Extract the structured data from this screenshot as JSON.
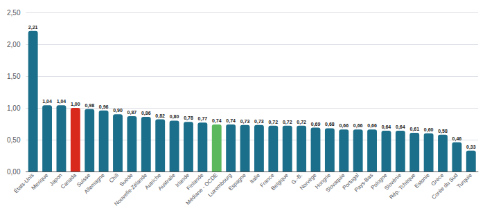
{
  "chart_data": {
    "type": "bar",
    "categories": [
      "États-Unis",
      "Mexique",
      "Japon",
      "Canada",
      "Suisse",
      "Allemagne",
      "Chili",
      "Suède",
      "Nouvelle-Zélande",
      "Autriche",
      "Australie",
      "Irlande",
      "Finlande",
      "Médiane - OCDE",
      "Luxembourg",
      "Espagne",
      "Italie",
      "France",
      "Belgique",
      "G.-B.",
      "Norvège",
      "Hongrie",
      "Slovaquie",
      "Portugal",
      "Pays-Bas",
      "Pologne",
      "Slovénie",
      "Rép. Tchèque",
      "Estonie",
      "Grèce",
      "Corée du Sud",
      "Turquie"
    ],
    "values": [
      2.21,
      1.04,
      1.04,
      1.0,
      0.98,
      0.96,
      0.9,
      0.87,
      0.86,
      0.82,
      0.8,
      0.78,
      0.77,
      0.74,
      0.74,
      0.73,
      0.73,
      0.72,
      0.72,
      0.72,
      0.69,
      0.68,
      0.66,
      0.66,
      0.66,
      0.64,
      0.64,
      0.61,
      0.6,
      0.58,
      0.46,
      0.33
    ],
    "value_labels": [
      "2,21",
      "1,04",
      "1,04",
      "1,00",
      "0,98",
      "0,96",
      "0,90",
      "0,87",
      "0,86",
      "0,82",
      "0,80",
      "0,78",
      "0,77",
      "0,74",
      "0,74",
      "0,73",
      "0,73",
      "0,72",
      "0,72",
      "0,72",
      "0,69",
      "0,68",
      "0,66",
      "0,66",
      "0,66",
      "0,64",
      "0,64",
      "0,61",
      "0,60",
      "0,58",
      "0,46",
      "0,33"
    ],
    "colors": [
      "#1b6f8a",
      "#1b6f8a",
      "#1b6f8a",
      "#d9291c",
      "#1b6f8a",
      "#1b6f8a",
      "#1b6f8a",
      "#1b6f8a",
      "#1b6f8a",
      "#1b6f8a",
      "#1b6f8a",
      "#1b6f8a",
      "#1b6f8a",
      "#5cb85c",
      "#1b6f8a",
      "#1b6f8a",
      "#1b6f8a",
      "#1b6f8a",
      "#1b6f8a",
      "#1b6f8a",
      "#1b6f8a",
      "#1b6f8a",
      "#1b6f8a",
      "#1b6f8a",
      "#1b6f8a",
      "#1b6f8a",
      "#1b6f8a",
      "#1b6f8a",
      "#1b6f8a",
      "#1b6f8a",
      "#1b6f8a",
      "#1b6f8a"
    ],
    "ylim": [
      0,
      2.5
    ],
    "yticks": [
      {
        "value": 0,
        "label": "0,00"
      },
      {
        "value": 0.5,
        "label": "0,50"
      },
      {
        "value": 1,
        "label": "1,00"
      },
      {
        "value": 1.5,
        "label": "1,50"
      },
      {
        "value": 2,
        "label": "2,00"
      },
      {
        "value": 2.5,
        "label": "2,50"
      }
    ],
    "grid": true,
    "data_labels": true
  }
}
